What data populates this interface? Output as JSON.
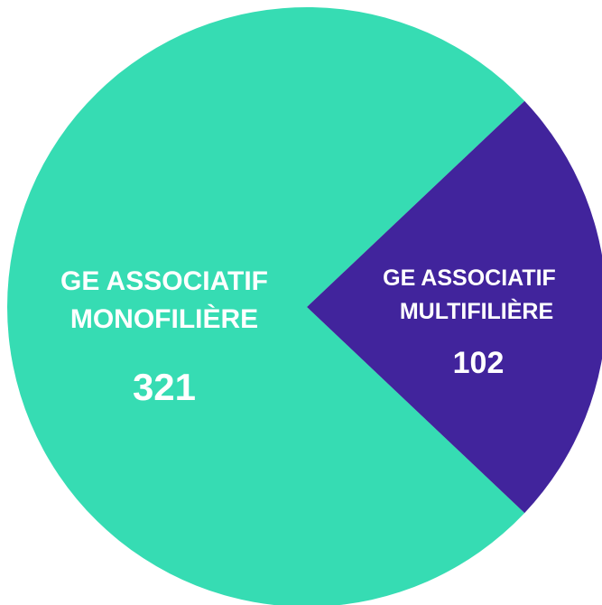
{
  "chart_data": {
    "type": "pie",
    "slices": [
      {
        "label_lines": [
          "GE ASSOCIATIF",
          "MONOFILIÈRE"
        ],
        "value": 321,
        "value_label": "321",
        "color": "#36dcb3"
      },
      {
        "label_lines": [
          "GE ASSOCIATIF",
          "MULTIFILIÈRE"
        ],
        "value": 102,
        "value_label": "102",
        "color": "#41249c"
      }
    ],
    "label_color": "#ffffff",
    "background": "#ffffff"
  }
}
